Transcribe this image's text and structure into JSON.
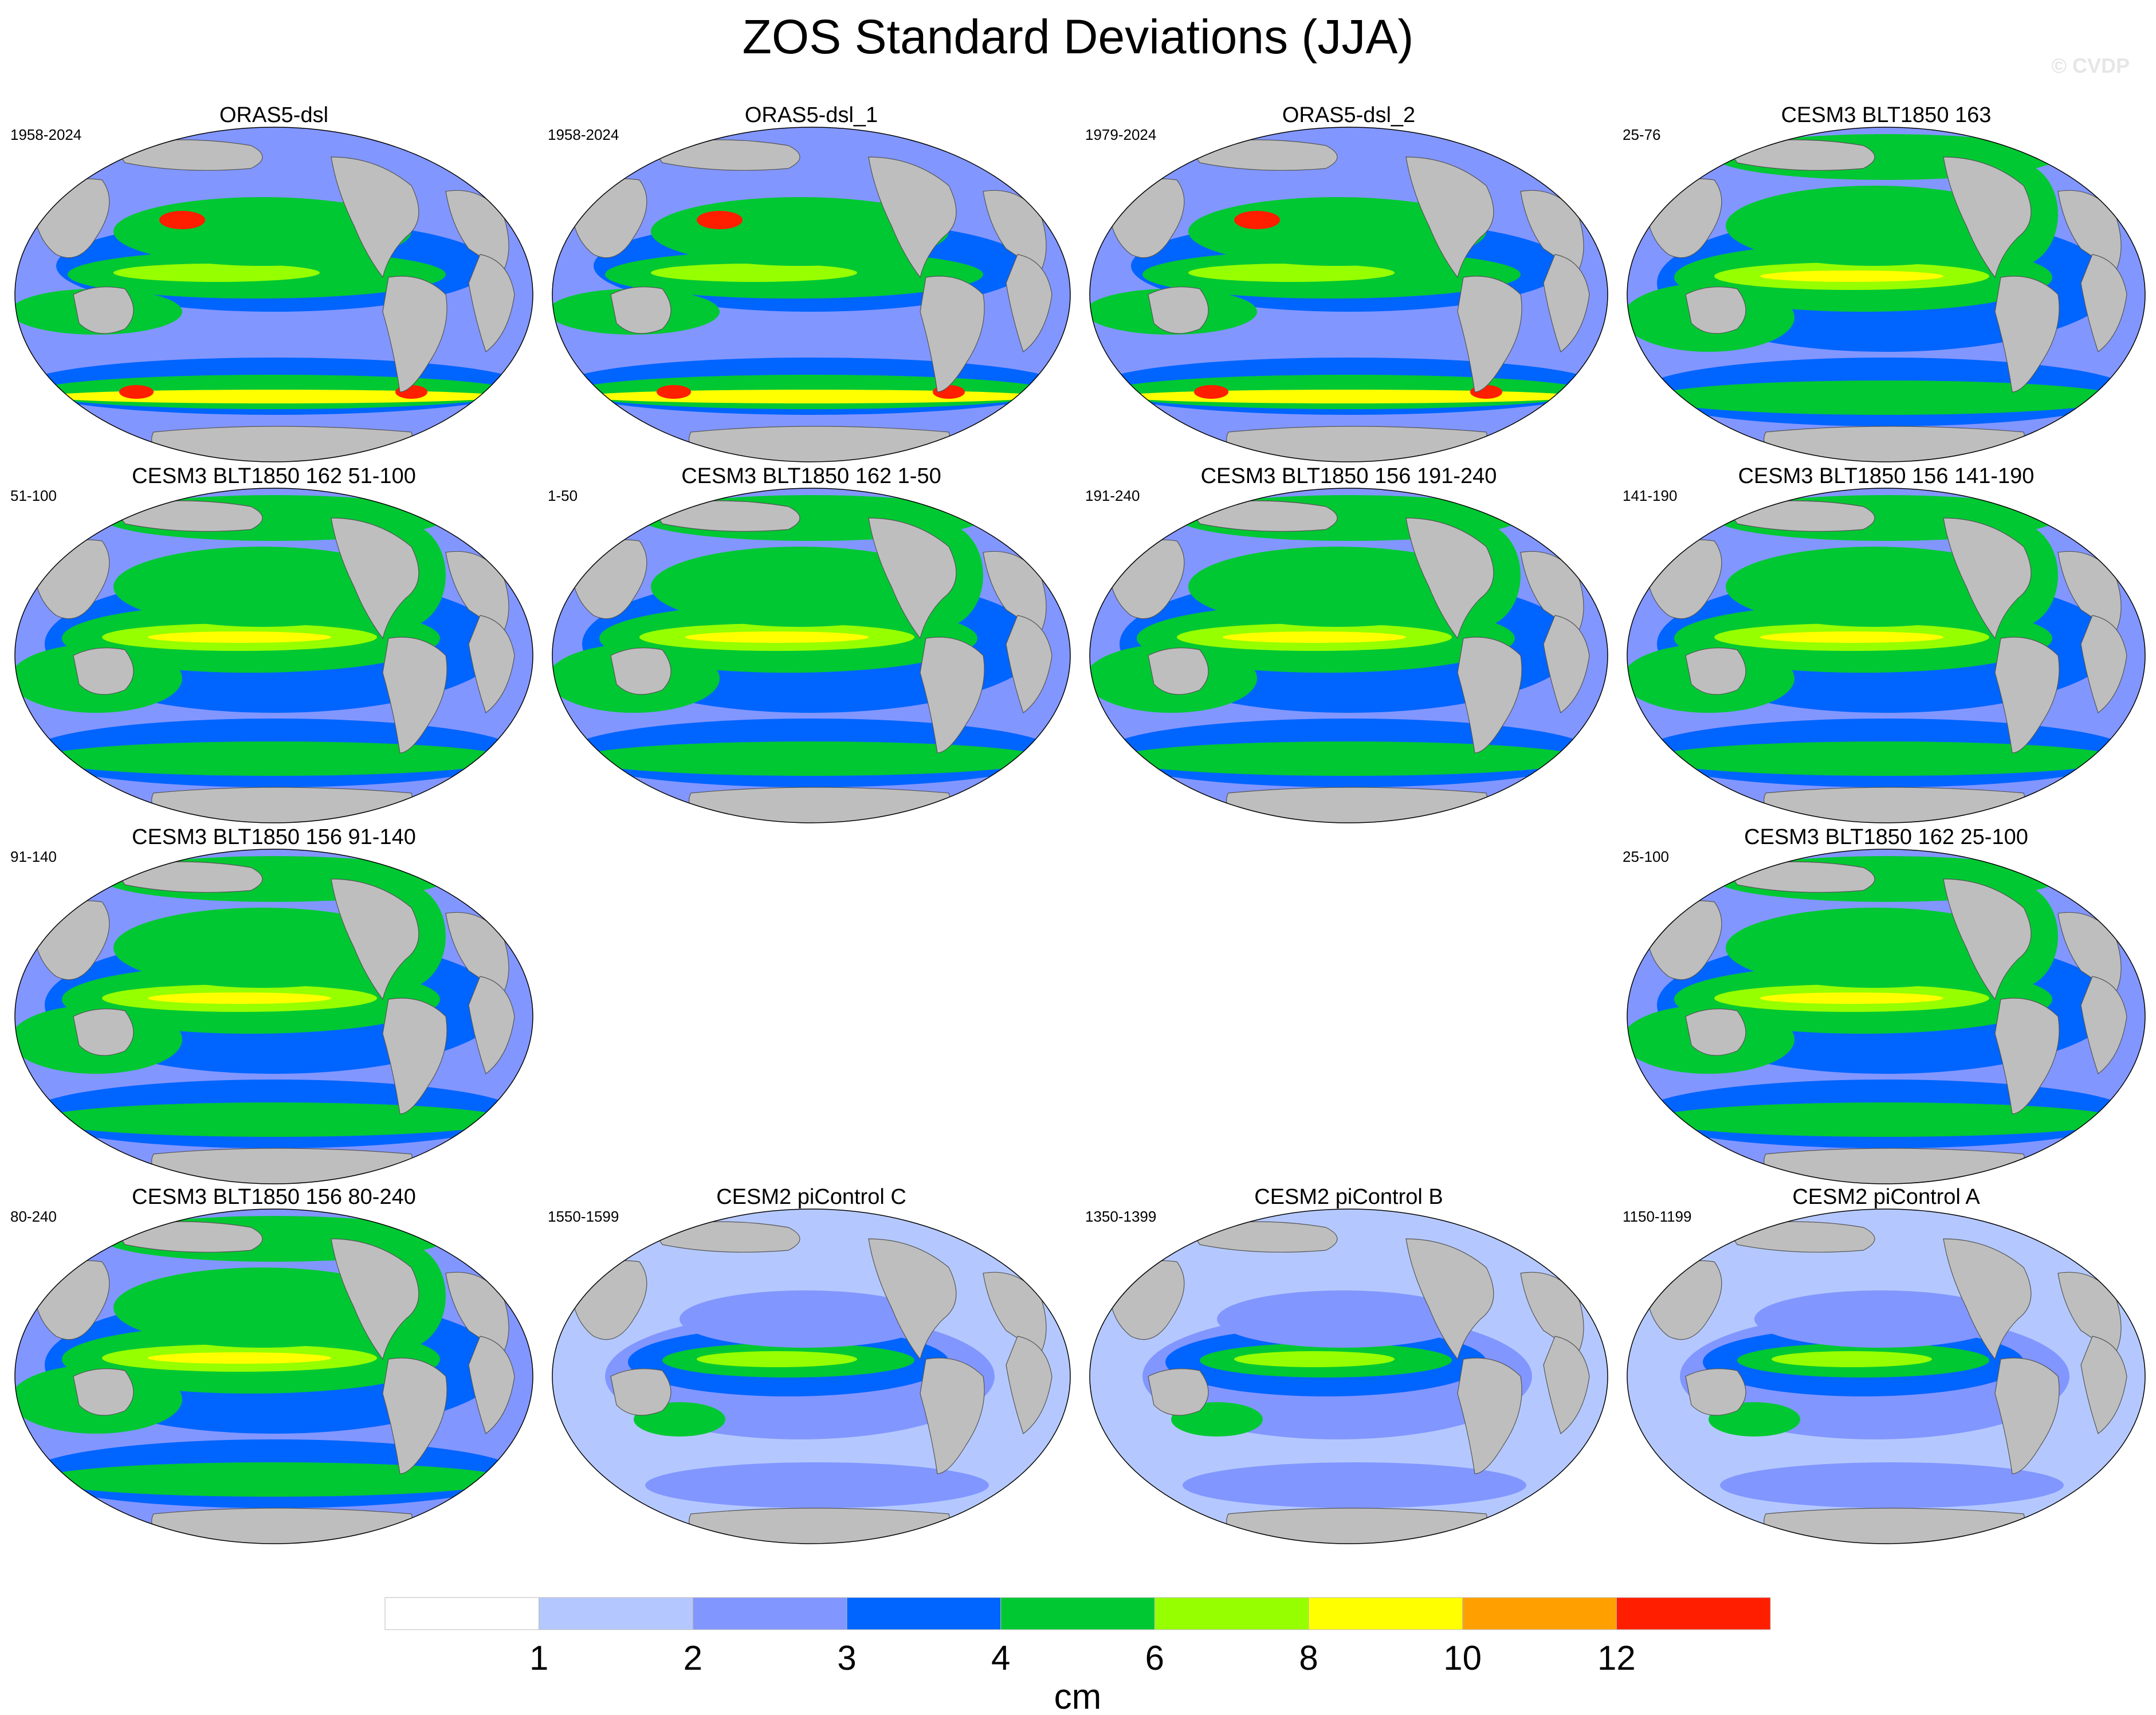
{
  "title": "ZOS Standard Deviations (JJA)",
  "watermark": "© CVDP",
  "panels": [
    {
      "title": "ORAS5-dsl",
      "years": "1958-2024",
      "intensity": 3
    },
    {
      "title": "ORAS5-dsl_1",
      "years": "1958-2024",
      "intensity": 3
    },
    {
      "title": "ORAS5-dsl_2",
      "years": "1979-2024",
      "intensity": 3
    },
    {
      "title": "CESM3 BLT1850 163",
      "years": "25-76",
      "intensity": 2
    },
    {
      "title": "CESM3 BLT1850 162 51-100",
      "years": "51-100",
      "intensity": 2
    },
    {
      "title": "CESM3 BLT1850 162 1-50",
      "years": "1-50",
      "intensity": 2
    },
    {
      "title": "CESM3 BLT1850 156 191-240",
      "years": "191-240",
      "intensity": 2
    },
    {
      "title": "CESM3 BLT1850 156 141-190",
      "years": "141-190",
      "intensity": 2
    },
    {
      "title": "CESM3 BLT1850 156 91-140",
      "years": "91-140",
      "intensity": 2
    },
    {
      "title": "CESM3 BLT1850 162 25-100",
      "years": "25-100",
      "intensity": 2
    },
    {
      "title": "CESM3 BLT1850 156 80-240",
      "years": "80-240",
      "intensity": 2
    },
    {
      "title": "CESM2 piControl C",
      "years": "1550-1599",
      "intensity": 1
    },
    {
      "title": "CESM2 piControl B",
      "years": "1350-1399",
      "intensity": 1
    },
    {
      "title": "CESM2 piControl A",
      "years": "1150-1199",
      "intensity": 1
    }
  ],
  "colorbar": {
    "unit": "cm",
    "colors": [
      "#ffffff",
      "#b4c8ff",
      "#8296ff",
      "#0064ff",
      "#00c832",
      "#96ff00",
      "#ffff00",
      "#ffa000",
      "#ff1e00"
    ],
    "tick_labels": [
      "1",
      "2",
      "3",
      "4",
      "6",
      "8",
      "10",
      "12"
    ]
  },
  "land_color": "#bebebe"
}
